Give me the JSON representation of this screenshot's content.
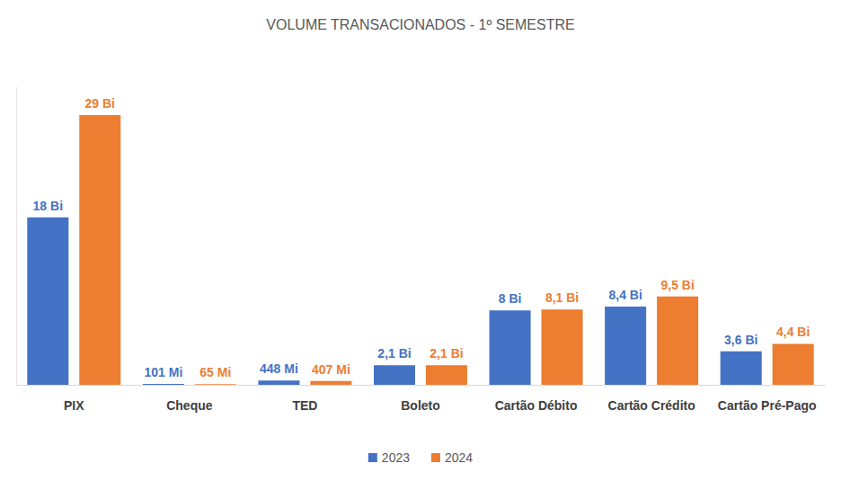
{
  "chart_data": {
    "type": "bar",
    "title": "VOLUME TRANSACIONADOS - 1º SEMESTRE",
    "categories": [
      "PIX",
      "Cheque",
      "TED",
      "Boleto",
      "Cartão Débito",
      "Cartão Crédito",
      "Cartão Pré-Pago"
    ],
    "series": [
      {
        "name": "2023",
        "color": "#4472c4",
        "values": [
          18,
          0.101,
          0.448,
          2.1,
          8,
          8.4,
          3.6
        ],
        "value_labels": [
          "18 Bi",
          "101 Mi",
          "448 Mi",
          "2,1 Bi",
          "8 Bi",
          "8,4 Bi",
          "3,6 Bi"
        ]
      },
      {
        "name": "2024",
        "color": "#ed7d31",
        "values": [
          29,
          0.065,
          0.407,
          2.1,
          8.1,
          9.5,
          4.4
        ],
        "value_labels": [
          "29 Bi",
          "65 Mi",
          "407 Mi",
          "2,1 Bi",
          "8,1 Bi",
          "9,5 Bi",
          "4,4 Bi"
        ]
      }
    ],
    "ylim": [
      0,
      32
    ],
    "grid": false,
    "legend": "bottom",
    "data_labels": true,
    "tick_labels": "x"
  }
}
